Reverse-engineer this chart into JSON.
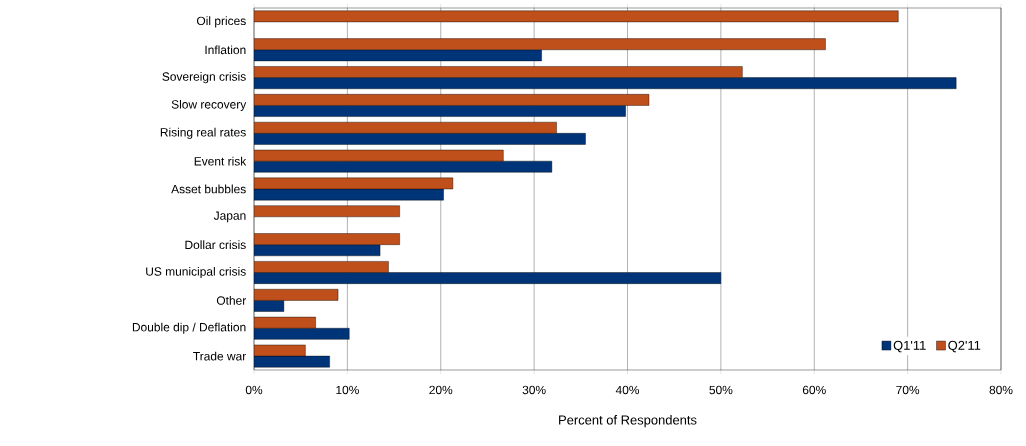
{
  "chart_data": {
    "type": "bar",
    "orientation": "horizontal",
    "xlabel": "Percent of Respondents",
    "categories": [
      "Oil prices",
      "Inflation",
      "Sovereign crisis",
      "Slow recovery",
      "Rising real rates",
      "Event risk",
      "Asset bubbles",
      "Japan",
      "Dollar crisis",
      "US municipal crisis",
      "Other",
      "Double dip / Deflation",
      "Trade war"
    ],
    "series": [
      {
        "name": "Q1'11",
        "color": "#003478",
        "values": [
          null,
          30.8,
          75.2,
          39.8,
          35.5,
          31.9,
          20.3,
          null,
          13.5,
          50.0,
          3.2,
          10.2,
          8.1
        ]
      },
      {
        "name": "Q2'11",
        "color": "#bf4f1b",
        "values": [
          69.0,
          61.2,
          52.3,
          42.3,
          32.4,
          26.7,
          21.3,
          15.6,
          15.6,
          14.4,
          9.0,
          6.6,
          5.5
        ]
      }
    ],
    "xlim": [
      0,
      80
    ],
    "xticks": [
      {
        "value": 0,
        "label": "0%"
      },
      {
        "value": 10,
        "label": "10%"
      },
      {
        "value": 20,
        "label": "20%"
      },
      {
        "value": 30,
        "label": "30%"
      },
      {
        "value": 40,
        "label": "40%"
      },
      {
        "value": 50,
        "label": "50%"
      },
      {
        "value": 60,
        "label": "60%"
      },
      {
        "value": 70,
        "label": "70%"
      },
      {
        "value": 80,
        "label": "80%"
      }
    ],
    "grid": "x",
    "legend": "bottom right"
  }
}
